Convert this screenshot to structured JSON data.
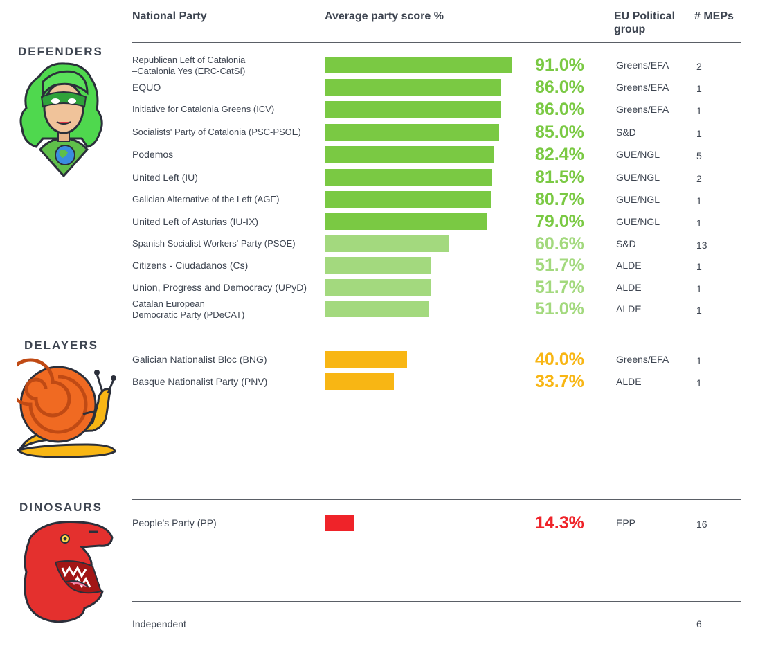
{
  "headers": {
    "party": "National Party",
    "score": "Average party score %",
    "group": "EU Political group",
    "meps": "# MEPs"
  },
  "categories": {
    "defenders": "DEFENDERS",
    "delayers": "DELAYERS",
    "dinosaurs": "DINOSAURS"
  },
  "colors": {
    "defender_high": "#7ac943",
    "defender_low": "#a3d97e",
    "delayer": "#f8b614",
    "dinosaur": "#ef2329"
  },
  "chart_data": {
    "type": "bar",
    "title": "Average party score %",
    "xlim": [
      0,
      100
    ],
    "series": [
      {
        "name": "Republican Left of Catalonia –Catalonia Yes (ERC-CatSí)",
        "value": 91.0,
        "label": "91.0%",
        "group": "Greens/EFA",
        "meps": "2",
        "category": "defenders"
      },
      {
        "name": "EQUO",
        "value": 86.0,
        "label": "86.0%",
        "group": "Greens/EFA",
        "meps": "1",
        "category": "defenders"
      },
      {
        "name": "Initiative for Catalonia Greens (ICV)",
        "value": 86.0,
        "label": "86.0%",
        "group": "Greens/EFA",
        "meps": "1",
        "category": "defenders"
      },
      {
        "name": "Socialists' Party of Catalonia (PSC-PSOE)",
        "value": 85.0,
        "label": "85.0%",
        "group": "S&D",
        "meps": "1",
        "category": "defenders"
      },
      {
        "name": "Podemos",
        "value": 82.4,
        "label": "82.4%",
        "group": "GUE/NGL",
        "meps": "5",
        "category": "defenders"
      },
      {
        "name": "United Left (IU)",
        "value": 81.5,
        "label": "81.5%",
        "group": "GUE/NGL",
        "meps": "2",
        "category": "defenders"
      },
      {
        "name": "Galician Alternative of the Left (AGE)",
        "value": 80.7,
        "label": "80.7%",
        "group": "GUE/NGL",
        "meps": "1",
        "category": "defenders"
      },
      {
        "name": "United Left of Asturias (IU-IX)",
        "value": 79.0,
        "label": "79.0%",
        "group": "GUE/NGL",
        "meps": "1",
        "category": "defenders"
      },
      {
        "name": "Spanish Socialist Workers' Party (PSOE)",
        "value": 60.6,
        "label": "60.6%",
        "group": "S&D",
        "meps": "13",
        "category": "defenders"
      },
      {
        "name": "Citizens - Ciudadanos (Cs)",
        "value": 51.7,
        "label": "51.7%",
        "group": "ALDE",
        "meps": "1",
        "category": "defenders"
      },
      {
        "name": "Union, Progress and Democracy (UPyD)",
        "value": 51.7,
        "label": "51.7%",
        "group": "ALDE",
        "meps": "1",
        "category": "defenders"
      },
      {
        "name": "Catalan European Democratic Party (PDeCAT)",
        "value": 51.0,
        "label": "51.0%",
        "group": "ALDE",
        "meps": "1",
        "category": "defenders"
      },
      {
        "name": "Galician Nationalist Bloc (BNG)",
        "value": 40.0,
        "label": "40.0%",
        "group": "Greens/EFA",
        "meps": "1",
        "category": "delayers"
      },
      {
        "name": "Basque Nationalist Party (PNV)",
        "value": 33.7,
        "label": "33.7%",
        "group": "ALDE",
        "meps": "1",
        "category": "delayers"
      },
      {
        "name": "People's Party (PP)",
        "value": 14.3,
        "label": "14.3%",
        "group": "EPP",
        "meps": "16",
        "category": "dinosaurs"
      }
    ],
    "independent": {
      "name": "Independent",
      "meps": "6"
    }
  },
  "party_lines": {
    "erc": [
      "Republican Left of Catalonia",
      "–Catalonia Yes (ERC-CatSí)"
    ],
    "pdecat": [
      "Catalan European",
      "Democratic Party (PDeCAT)"
    ]
  }
}
